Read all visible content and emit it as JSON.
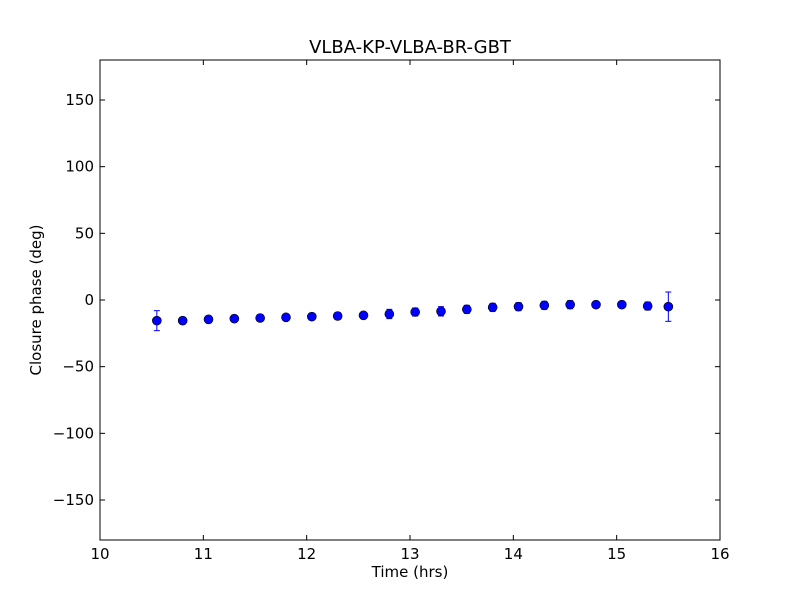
{
  "chart_data": {
    "type": "scatter",
    "title": "VLBA-KP-VLBA-BR-GBT",
    "xlabel": "Time (hrs)",
    "ylabel": "Closure phase (deg)",
    "xlim": [
      10,
      16
    ],
    "ylim": [
      -180,
      180
    ],
    "xticks": [
      10,
      11,
      12,
      13,
      14,
      15,
      16
    ],
    "yticks": [
      -150,
      -100,
      -50,
      0,
      50,
      100,
      150
    ],
    "xtick_labels": [
      "10",
      "11",
      "12",
      "13",
      "14",
      "15",
      "16"
    ],
    "ytick_labels": [
      "−150",
      "−100",
      "−50",
      "0",
      "50",
      "100",
      "150"
    ],
    "grid": false,
    "marker_color": "#0000ff",
    "series": [
      {
        "x": [
          10.55,
          10.8,
          11.05,
          11.3,
          11.55,
          11.8,
          12.05,
          12.3,
          12.55,
          12.8,
          13.05,
          13.3,
          13.55,
          13.8,
          14.05,
          14.3,
          14.55,
          14.8,
          15.05,
          15.3,
          15.5
        ],
        "y": [
          -15.5,
          -15.5,
          -14.5,
          -14.0,
          -13.5,
          -13.0,
          -12.5,
          -12.0,
          -11.5,
          -10.5,
          -9.0,
          -8.5,
          -7.0,
          -5.5,
          -5.0,
          -4.0,
          -3.5,
          -3.5,
          -3.5,
          -4.5,
          -5.0
        ],
        "yerr": [
          7.5,
          2.5,
          2.5,
          2.5,
          2.5,
          2.5,
          2.5,
          2.5,
          2.5,
          3.5,
          3.0,
          3.5,
          3.0,
          3.0,
          3.0,
          3.0,
          3.0,
          2.5,
          2.5,
          3.0,
          11.0
        ]
      }
    ]
  }
}
